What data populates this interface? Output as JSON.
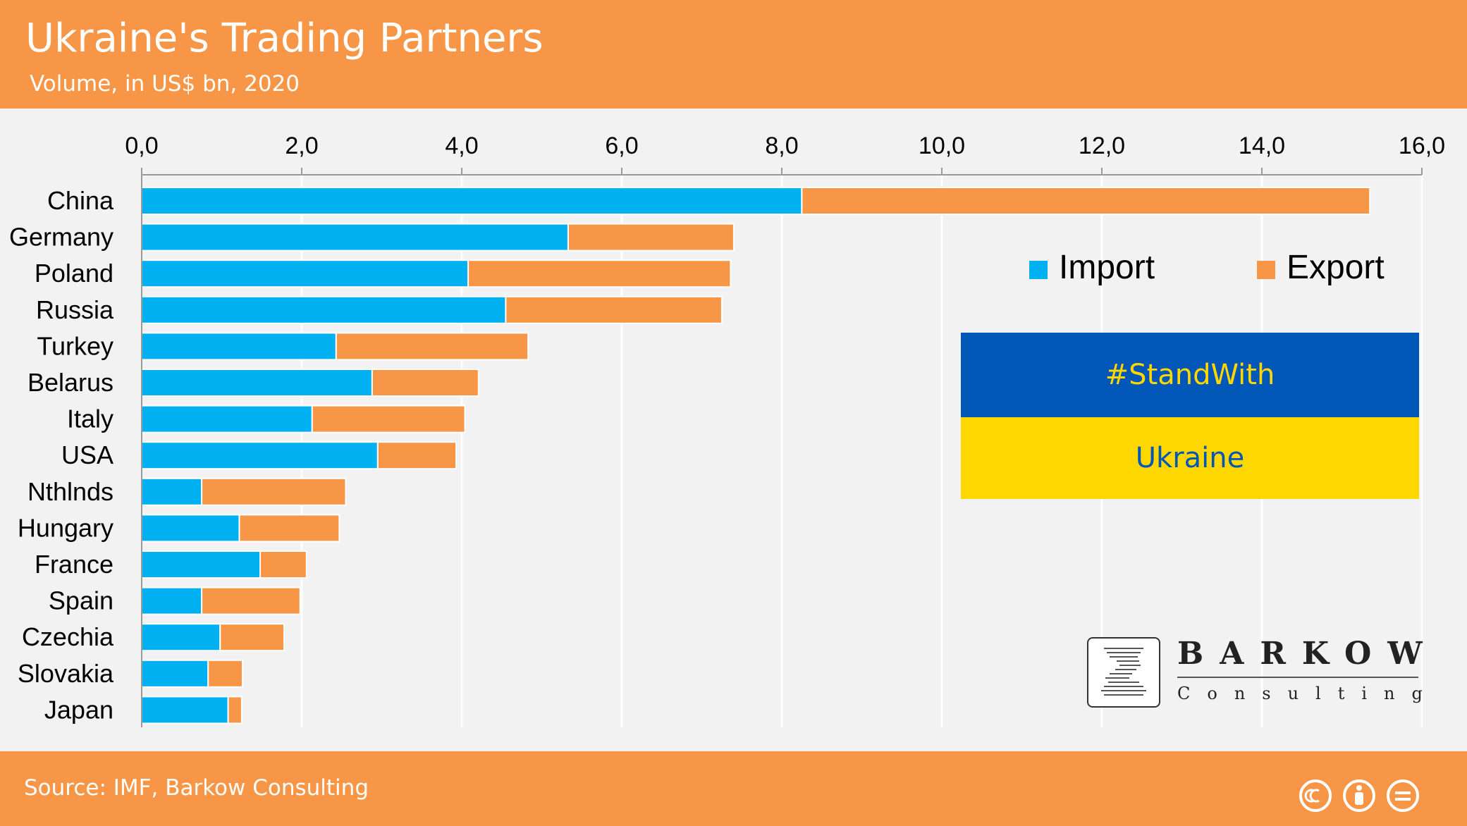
{
  "header": {
    "title": "Ukraine's Trading Partners",
    "subtitle": "Volume, in US$ bn, 2020"
  },
  "footer": {
    "source": "Source: IMF, Barkow Consulting"
  },
  "legend": {
    "import_label": "Import",
    "export_label": "Export",
    "position": "top-right"
  },
  "flag_box": {
    "top_text": "#StandWith",
    "bottom_text": "Ukraine",
    "top_color": "#0057b7",
    "bottom_color": "#ffd700"
  },
  "logo": {
    "name": "BARKOW",
    "sub": "Consulting"
  },
  "license_icons": [
    "cc-icon",
    "by-icon",
    "nd-icon"
  ],
  "colors": {
    "import": "#00b0f0",
    "export": "#f79646",
    "header": "#f79646",
    "background": "#f2f2f2"
  },
  "chart_data": {
    "type": "bar",
    "orientation": "horizontal",
    "stacked": true,
    "categories": [
      "China",
      "Germany",
      "Poland",
      "Russia",
      "Turkey",
      "Belarus",
      "Italy",
      "USA",
      "Nthlnds",
      "Hungary",
      "France",
      "Spain",
      "Czechia",
      "Slovakia",
      "Japan"
    ],
    "series": [
      {
        "name": "Import",
        "values": [
          8.25,
          5.33,
          4.08,
          4.55,
          2.43,
          2.88,
          2.13,
          2.95,
          0.75,
          1.22,
          1.48,
          0.75,
          0.98,
          0.83,
          1.08
        ]
      },
      {
        "name": "Export",
        "values": [
          7.1,
          2.07,
          3.28,
          2.7,
          2.4,
          1.33,
          1.91,
          0.98,
          1.8,
          1.25,
          0.58,
          1.23,
          0.8,
          0.43,
          0.17
        ]
      }
    ],
    "xlim": [
      0,
      16
    ],
    "x_ticks": [
      "0,0",
      "2,0",
      "4,0",
      "6,0",
      "8,0",
      "10,0",
      "12,0",
      "14,0",
      "16,0"
    ],
    "x_tick_values": [
      0,
      2,
      4,
      6,
      8,
      10,
      12,
      14,
      16
    ],
    "x_axis_position": "top",
    "grid": true
  }
}
